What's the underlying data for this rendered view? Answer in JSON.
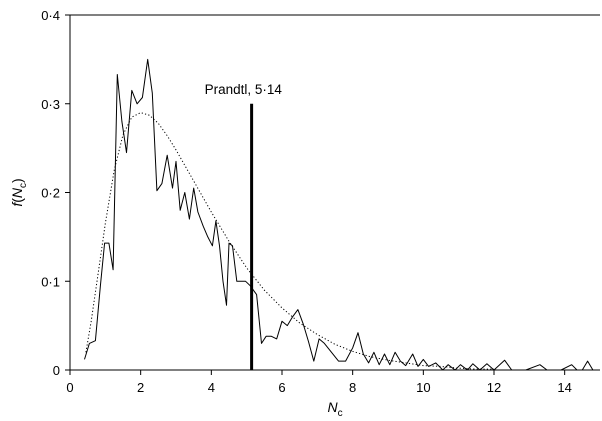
{
  "chart_data": {
    "type": "line",
    "title": "",
    "xlabel": {
      "main": "N",
      "sub": "c"
    },
    "ylabel": {
      "func": "f",
      "open": "(",
      "main": "N",
      "sub": "c",
      "close": ")"
    },
    "xlim": [
      0,
      15
    ],
    "ylim": [
      0,
      0.4
    ],
    "x_ticks": [
      0,
      2,
      4,
      6,
      8,
      10,
      12,
      14
    ],
    "x_tick_labels": [
      "0",
      "2",
      "4",
      "6",
      "8",
      "10",
      "12",
      "14"
    ],
    "y_ticks": [
      0,
      0.1,
      0.2,
      0.3,
      0.4
    ],
    "y_tick_labels": [
      "0",
      "0·1",
      "0·2",
      "0·3",
      "0·4"
    ],
    "grid": false,
    "series": [
      {
        "style": "solid-thin",
        "points": [
          [
            0.41,
            0.012
          ],
          [
            0.55,
            0.03
          ],
          [
            0.72,
            0.033
          ],
          [
            0.86,
            0.095
          ],
          [
            0.98,
            0.143
          ],
          [
            1.1,
            0.143
          ],
          [
            1.22,
            0.113
          ],
          [
            1.34,
            0.333
          ],
          [
            1.47,
            0.28
          ],
          [
            1.6,
            0.245
          ],
          [
            1.75,
            0.315
          ],
          [
            1.9,
            0.3
          ],
          [
            2.05,
            0.307
          ],
          [
            2.2,
            0.35
          ],
          [
            2.33,
            0.312
          ],
          [
            2.46,
            0.202
          ],
          [
            2.6,
            0.21
          ],
          [
            2.75,
            0.242
          ],
          [
            2.9,
            0.205
          ],
          [
            3.0,
            0.235
          ],
          [
            3.12,
            0.18
          ],
          [
            3.25,
            0.2
          ],
          [
            3.38,
            0.17
          ],
          [
            3.5,
            0.205
          ],
          [
            3.62,
            0.178
          ],
          [
            3.77,
            0.162
          ],
          [
            3.9,
            0.15
          ],
          [
            4.03,
            0.14
          ],
          [
            4.13,
            0.168
          ],
          [
            4.23,
            0.14
          ],
          [
            4.33,
            0.1
          ],
          [
            4.43,
            0.073
          ],
          [
            4.5,
            0.143
          ],
          [
            4.6,
            0.14
          ],
          [
            4.72,
            0.1
          ],
          [
            4.85,
            0.1
          ],
          [
            4.97,
            0.1
          ],
          [
            5.1,
            0.095
          ],
          [
            5.28,
            0.085
          ],
          [
            5.42,
            0.03
          ],
          [
            5.55,
            0.038
          ],
          [
            5.7,
            0.038
          ],
          [
            5.85,
            0.035
          ],
          [
            6.0,
            0.055
          ],
          [
            6.15,
            0.05
          ],
          [
            6.3,
            0.06
          ],
          [
            6.45,
            0.068
          ],
          [
            6.6,
            0.052
          ],
          [
            6.75,
            0.032
          ],
          [
            6.9,
            0.01
          ],
          [
            7.05,
            0.035
          ],
          [
            7.2,
            0.03
          ],
          [
            7.4,
            0.02
          ],
          [
            7.6,
            0.01
          ],
          [
            7.8,
            0.01
          ],
          [
            8.0,
            0.025
          ],
          [
            8.15,
            0.042
          ],
          [
            8.3,
            0.018
          ],
          [
            8.45,
            0.008
          ],
          [
            8.6,
            0.02
          ],
          [
            8.75,
            0.006
          ],
          [
            8.9,
            0.018
          ],
          [
            9.05,
            0.006
          ],
          [
            9.2,
            0.02
          ],
          [
            9.35,
            0.01
          ],
          [
            9.5,
            0.005
          ],
          [
            9.7,
            0.018
          ],
          [
            9.85,
            0.004
          ],
          [
            10.0,
            0.012
          ],
          [
            10.15,
            0.004
          ],
          [
            10.35,
            0.008
          ],
          [
            10.55,
            0.0
          ],
          [
            10.7,
            0.006
          ],
          [
            10.9,
            0.0
          ],
          [
            11.05,
            0.006
          ],
          [
            11.25,
            0.0
          ],
          [
            11.4,
            0.007
          ],
          [
            11.6,
            0.0
          ],
          [
            11.8,
            0.007
          ],
          [
            12.0,
            0.0
          ],
          [
            12.3,
            0.011
          ],
          [
            12.5,
            0.0
          ],
          [
            12.9,
            0.0
          ],
          [
            13.3,
            0.006
          ],
          [
            13.5,
            0.0
          ],
          [
            13.9,
            0.0
          ],
          [
            14.2,
            0.006
          ],
          [
            14.35,
            0.0
          ],
          [
            14.5,
            0.0
          ],
          [
            14.65,
            0.01
          ],
          [
            14.8,
            0.0
          ]
        ]
      },
      {
        "style": "dotted",
        "points": [
          [
            0.45,
            0.02
          ],
          [
            0.6,
            0.055
          ],
          [
            0.8,
            0.11
          ],
          [
            1.0,
            0.165
          ],
          [
            1.25,
            0.225
          ],
          [
            1.5,
            0.265
          ],
          [
            1.75,
            0.285
          ],
          [
            2.0,
            0.29
          ],
          [
            2.25,
            0.287
          ],
          [
            2.5,
            0.278
          ],
          [
            2.75,
            0.264
          ],
          [
            3.0,
            0.248
          ],
          [
            3.5,
            0.213
          ],
          [
            4.0,
            0.178
          ],
          [
            4.5,
            0.145
          ],
          [
            5.0,
            0.115
          ],
          [
            5.5,
            0.09
          ],
          [
            6.0,
            0.07
          ],
          [
            6.5,
            0.053
          ],
          [
            7.0,
            0.04
          ],
          [
            7.5,
            0.029
          ],
          [
            8.0,
            0.021
          ],
          [
            8.5,
            0.015
          ],
          [
            9.0,
            0.011
          ],
          [
            9.5,
            0.008
          ],
          [
            10.0,
            0.005
          ],
          [
            10.5,
            0.004
          ],
          [
            11.0,
            0.002
          ],
          [
            11.5,
            0.001
          ],
          [
            12.0,
            0.001
          ]
        ]
      }
    ],
    "reference_line": {
      "x": 5.14,
      "y_top": 0.3,
      "label": "Prandtl, 5·14"
    }
  }
}
